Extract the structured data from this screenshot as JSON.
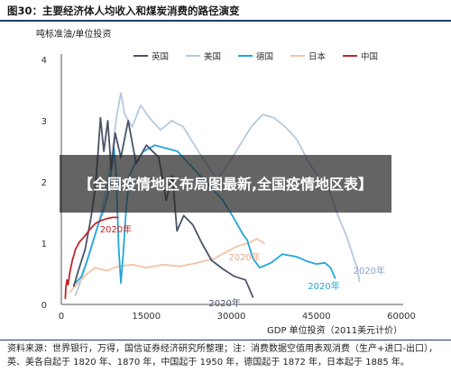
{
  "figure": {
    "title": "图30：主要经济体人均收入和煤炭消费的路径演变",
    "source_note": "资料来源：世界银行，万得，国信证券经济研究所整理；注：消费数据空值用表观消费（生产+进口-出口），英、美各自起于 1820 年、1870 年，中国起于 1950 年，德国起于 1872 年，日本起于 1885 年。",
    "overlay_text": "【全国疫情地区布局图最新,全国疫情地区表】"
  },
  "chart_data": {
    "type": "line",
    "title": "",
    "xlabel": "GDP 单位投资（2011美元计价）",
    "ylabel": "吨标准油/单位投资",
    "xlim": [
      0,
      60000
    ],
    "ylim": [
      0,
      4
    ],
    "xticks": [
      0,
      15000,
      30000,
      45000,
      60000
    ],
    "yticks": [
      0,
      1,
      2,
      3,
      4
    ],
    "grid": false,
    "legend_position": "top",
    "series": [
      {
        "name": "英国",
        "color": "#4a5468",
        "values": [
          [
            2200,
            0.3
          ],
          [
            3000,
            0.55
          ],
          [
            4200,
            0.9
          ],
          [
            5200,
            1.4
          ],
          [
            6000,
            1.9
          ],
          [
            6500,
            2.5
          ],
          [
            6900,
            3.05
          ],
          [
            7500,
            2.5
          ],
          [
            8200,
            3.0
          ],
          [
            8800,
            2.2
          ],
          [
            9500,
            2.8
          ],
          [
            10500,
            2.4
          ],
          [
            11800,
            3.0
          ],
          [
            13200,
            2.3
          ],
          [
            15000,
            2.6
          ],
          [
            17200,
            2.4
          ],
          [
            18500,
            1.7
          ],
          [
            19600,
            2.1
          ],
          [
            20400,
            1.2
          ],
          [
            21600,
            1.45
          ],
          [
            23200,
            1.3
          ],
          [
            24800,
            1.0
          ],
          [
            26500,
            0.72
          ],
          [
            28500,
            0.58
          ],
          [
            30500,
            0.46
          ],
          [
            32500,
            0.4
          ],
          [
            33800,
            0.12
          ]
        ]
      },
      {
        "name": "美国",
        "color": "#b6c8e0",
        "values": [
          [
            2500,
            0.15
          ],
          [
            3500,
            0.4
          ],
          [
            4800,
            0.8
          ],
          [
            6500,
            1.3
          ],
          [
            8000,
            1.9
          ],
          [
            9000,
            2.5
          ],
          [
            9800,
            3.1
          ],
          [
            10500,
            3.45
          ],
          [
            11200,
            3.1
          ],
          [
            12500,
            2.9
          ],
          [
            14000,
            3.25
          ],
          [
            15500,
            3.05
          ],
          [
            17500,
            2.85
          ],
          [
            19500,
            3.0
          ],
          [
            21500,
            2.9
          ],
          [
            23500,
            2.6
          ],
          [
            25500,
            2.3
          ],
          [
            27500,
            2.05
          ],
          [
            29500,
            2.3
          ],
          [
            31500,
            2.6
          ],
          [
            33500,
            2.9
          ],
          [
            35500,
            3.1
          ],
          [
            37500,
            3.05
          ],
          [
            39500,
            2.9
          ],
          [
            41500,
            2.7
          ],
          [
            43500,
            2.35
          ],
          [
            45500,
            2.05
          ],
          [
            47000,
            1.95
          ],
          [
            48800,
            1.45
          ],
          [
            50400,
            1.1
          ],
          [
            51600,
            0.75
          ],
          [
            52200,
            0.6
          ],
          [
            52600,
            0.38
          ]
        ]
      },
      {
        "name": "德国",
        "color": "#22a6d8",
        "values": [
          [
            2500,
            0.35
          ],
          [
            3500,
            0.45
          ],
          [
            4500,
            0.7
          ],
          [
            5500,
            1.0
          ],
          [
            6500,
            1.3
          ],
          [
            7500,
            1.55
          ],
          [
            8200,
            1.8
          ],
          [
            8600,
            2.05
          ],
          [
            9000,
            2.3
          ],
          [
            9300,
            2.55
          ],
          [
            9700,
            2.1
          ],
          [
            10100,
            0.95
          ],
          [
            10500,
            0.35
          ],
          [
            10900,
            0.8
          ],
          [
            11400,
            1.5
          ],
          [
            12000,
            2.1
          ],
          [
            13000,
            2.3
          ],
          [
            14500,
            2.5
          ],
          [
            16500,
            2.6
          ],
          [
            18500,
            2.55
          ],
          [
            20500,
            2.5
          ],
          [
            22500,
            2.3
          ],
          [
            24500,
            2.1
          ],
          [
            26500,
            1.9
          ],
          [
            28500,
            1.7
          ],
          [
            30500,
            1.4
          ],
          [
            32000,
            1.15
          ],
          [
            32800,
            1.05
          ],
          [
            33800,
            0.75
          ],
          [
            35000,
            0.6
          ],
          [
            37000,
            0.68
          ],
          [
            39000,
            0.82
          ],
          [
            41500,
            0.78
          ],
          [
            43500,
            0.7
          ],
          [
            45000,
            0.66
          ],
          [
            46500,
            0.68
          ],
          [
            47500,
            0.6
          ],
          [
            48300,
            0.43
          ]
        ]
      },
      {
        "name": "日本",
        "color": "#f2c4a8",
        "values": [
          [
            1500,
            0.2
          ],
          [
            3000,
            0.35
          ],
          [
            4500,
            0.5
          ],
          [
            6000,
            0.6
          ],
          [
            8000,
            0.55
          ],
          [
            10000,
            0.62
          ],
          [
            12500,
            0.65
          ],
          [
            15000,
            0.6
          ],
          [
            18000,
            0.65
          ],
          [
            21000,
            0.62
          ],
          [
            24000,
            0.68
          ],
          [
            27000,
            0.75
          ],
          [
            29000,
            0.85
          ],
          [
            31000,
            0.95
          ],
          [
            33000,
            1.0
          ],
          [
            34500,
            1.07
          ],
          [
            35800,
            1.0
          ]
        ]
      },
      {
        "name": "中国",
        "color": "#c0262c",
        "values": [
          [
            700,
            0.1
          ],
          [
            800,
            0.28
          ],
          [
            1000,
            0.4
          ],
          [
            1200,
            0.32
          ],
          [
            1500,
            0.52
          ],
          [
            1900,
            0.7
          ],
          [
            2500,
            0.9
          ],
          [
            3200,
            1.02
          ],
          [
            4000,
            1.1
          ],
          [
            5000,
            1.22
          ],
          [
            6000,
            1.32
          ],
          [
            7000,
            1.37
          ],
          [
            8000,
            1.4
          ],
          [
            9000,
            1.42
          ],
          [
            10000,
            1.42
          ]
        ]
      }
    ],
    "annotations": [
      {
        "text": "2020年",
        "x": 6800,
        "y": 1.18,
        "color": "#c0262c"
      },
      {
        "text": "2020年",
        "x": 29500,
        "y": 0.72,
        "color": "#e8a888"
      },
      {
        "text": "2020年",
        "x": 43500,
        "y": 0.25,
        "color": "#22a6d8"
      },
      {
        "text": "2020年",
        "x": 51500,
        "y": 0.5,
        "color": "#8aa6cc"
      },
      {
        "text": "2020年",
        "x": 26000,
        "y": -0.03,
        "color": "#4a5468"
      }
    ]
  }
}
